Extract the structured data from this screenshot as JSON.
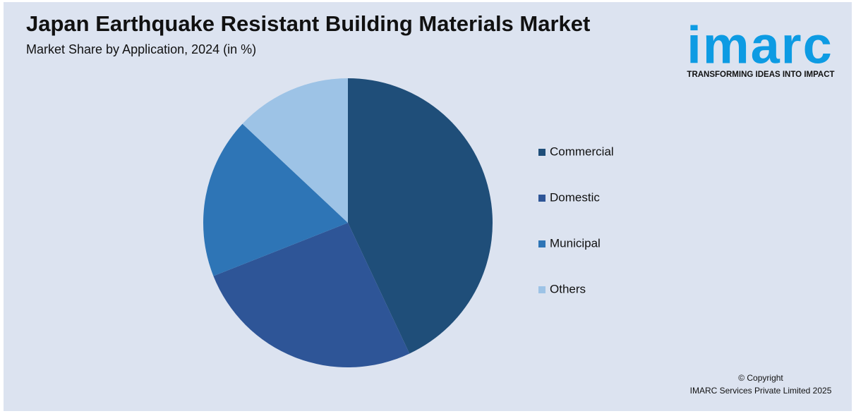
{
  "chart_data": {
    "type": "pie",
    "title": "Japan Earthquake Resistant Building Materials Market",
    "subtitle": "Market Share by Application, 2024 (in %)",
    "categories": [
      "Commercial",
      "Domestic",
      "Municipal",
      "Others"
    ],
    "values": [
      43,
      26,
      18,
      13
    ],
    "colors": [
      "#1f4e79",
      "#2e5597",
      "#2e75b6",
      "#9dc3e6"
    ],
    "legend": "right"
  },
  "logo": {
    "name": "imarc",
    "tagline": "TRANSFORMING IDEAS INTO IMPACT"
  },
  "footer": {
    "copyright": "© Copyright",
    "owner": "IMARC Services Private Limited 2025"
  }
}
